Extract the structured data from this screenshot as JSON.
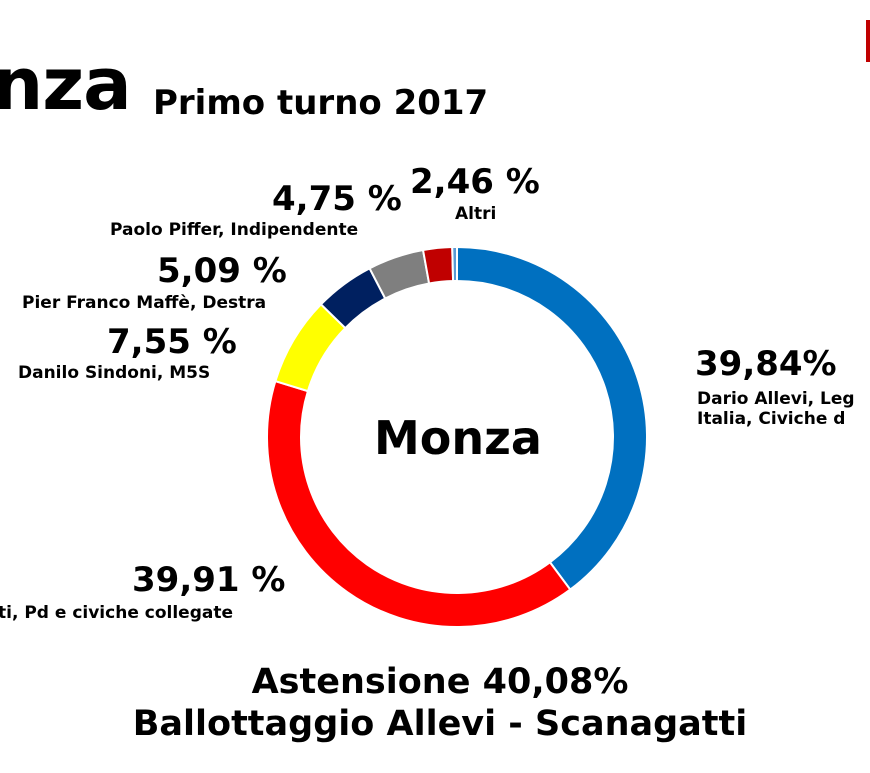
{
  "header": {
    "title": "nza",
    "subtitle": "Primo turno 2017"
  },
  "center_label": "Monza",
  "labels": {
    "allevi_pct": "39,84%",
    "allevi_line1": "Dario Allevi, Leg",
    "allevi_line2": "Italia, Civiche d",
    "scanagatti_pct": "39,91 %",
    "scanagatti_line": "ti, Pd e civiche collegate",
    "sindoni_pct": "7,55 %",
    "sindoni_line": "Danilo Sindoni, M5S",
    "maffe_pct": "5,09 %",
    "maffe_line": "Pier Franco Maffè, Destra",
    "piffer_pct": "4,75 %",
    "piffer_line": "Paolo Piffer, Indipendente",
    "altri_pct": "2,46 %",
    "altri_line": "Altri"
  },
  "footer": {
    "line1": "Astensione 40,08%",
    "line2": "Ballottaggio Allevi - Scanagatti"
  },
  "chart_data": {
    "type": "pie",
    "donut": true,
    "slices": [
      {
        "label": "Dario Allevi",
        "value": 39.84,
        "color": "#0070c0"
      },
      {
        "label": "Scanagatti",
        "value": 39.91,
        "color": "#ff0000"
      },
      {
        "label": "Danilo Sindoni, M5S",
        "value": 7.55,
        "color": "#ffff00"
      },
      {
        "label": "Pier Franco Maffè, Destra",
        "value": 5.09,
        "color": "#002060"
      },
      {
        "label": "Paolo Piffer, Indipendente",
        "value": 4.75,
        "color": "#7f7f7f"
      },
      {
        "label": "Altri",
        "value": 2.46,
        "color": "#c00000"
      },
      {
        "label": "",
        "value": 0.4,
        "color": "#5b9bd5"
      }
    ]
  }
}
